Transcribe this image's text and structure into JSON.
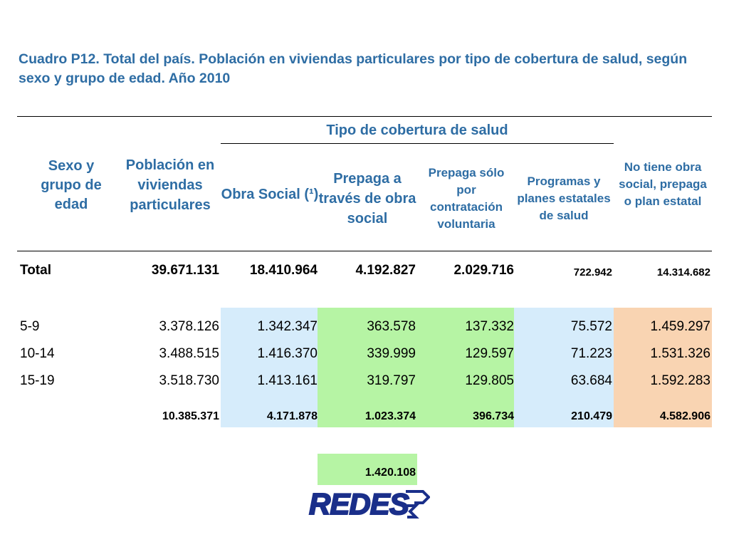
{
  "title": "Cuadro P12. Total del país. Población en viviendas particulares por tipo de cobertura de salud, según sexo y grupo de edad. Año 2010",
  "headers": {
    "col1": "Sexo y grupo de edad",
    "col2": "Población en viviendas particulares",
    "group": "Tipo de cobertura de salud",
    "col3": "Obra Social (¹)",
    "col4": "Prepaga a través de obra social",
    "col5": "Prepaga sólo por contratación voluntaria",
    "col6": "Programas y planes estatales de salud",
    "col7": "No tiene obra social, prepaga o plan estatal"
  },
  "total_row": {
    "label": "Total",
    "values": [
      "39.671.131",
      "18.410.964",
      "4.192.827",
      "2.029.716",
      "722.942",
      "14.314.682"
    ]
  },
  "rows": [
    {
      "label": "5-9",
      "values": [
        "3.378.126",
        "1.342.347",
        "363.578",
        "137.332",
        "75.572",
        "1.459.297"
      ]
    },
    {
      "label": "10-14",
      "values": [
        "3.488.515",
        "1.416.370",
        "339.999",
        "129.597",
        "71.223",
        "1.531.326"
      ]
    },
    {
      "label": "15-19",
      "values": [
        "3.518.730",
        "1.413.161",
        "319.797",
        "129.805",
        "63.684",
        "1.592.283"
      ]
    }
  ],
  "subtotal_row": {
    "values": [
      "10.385.371",
      "4.171.878",
      "1.023.374",
      "396.734",
      "210.479",
      "4.582.906"
    ]
  },
  "extra_total": "1.420.108",
  "logo": {
    "text": "REDES",
    "color": "#1a2f8a"
  }
}
